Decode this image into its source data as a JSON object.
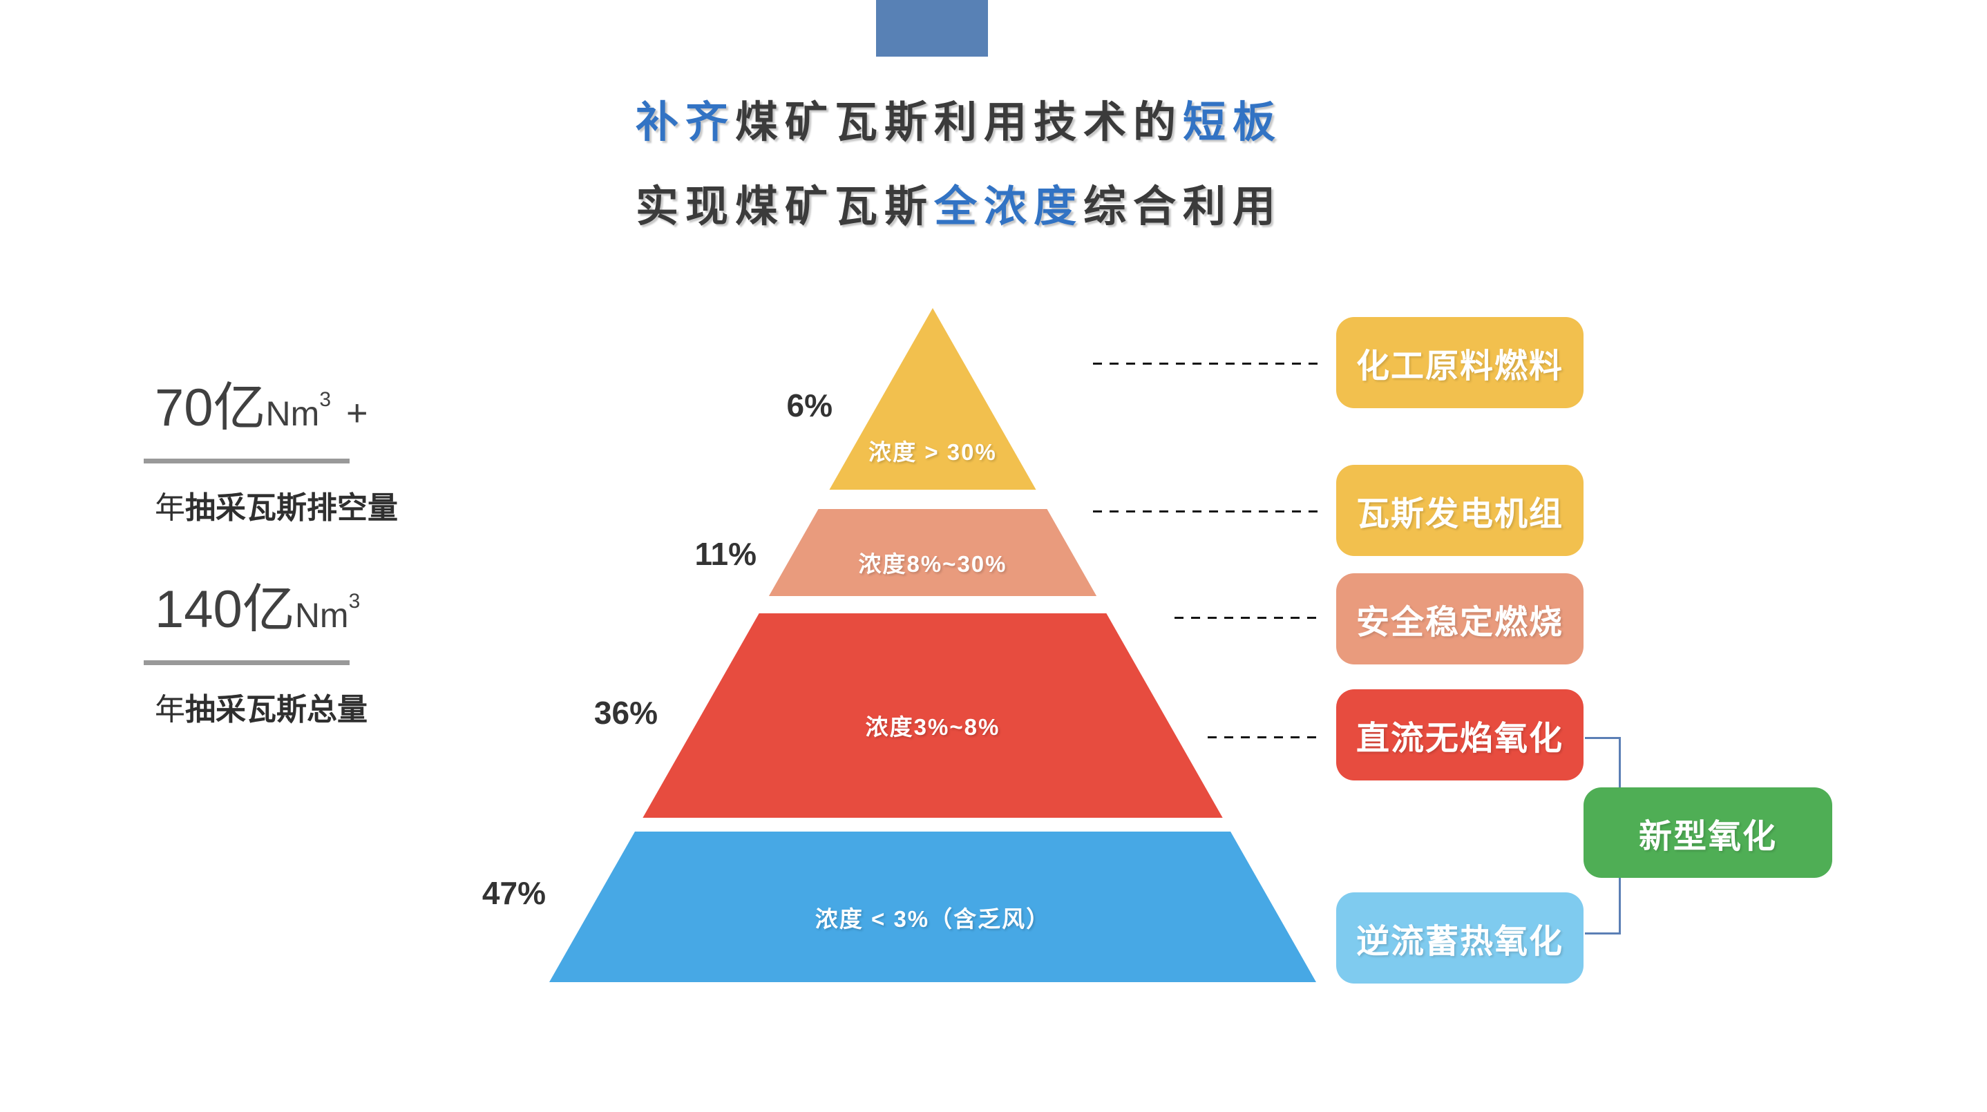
{
  "title": {
    "line1": [
      {
        "text": "补齐"
      },
      {
        "text": "煤矿瓦斯利用技术的"
      },
      {
        "text": "短板"
      }
    ],
    "line2": [
      {
        "text": "实现煤矿瓦斯"
      },
      {
        "text": "全浓度"
      },
      {
        "text": "综合利用"
      }
    ]
  },
  "stats": [
    {
      "value": "70亿",
      "unit": "Nm",
      "sup": "3",
      "suffix": "+",
      "label_prefix": "年",
      "label_bold": "抽采瓦斯排空量"
    },
    {
      "value": "140亿",
      "unit": "Nm",
      "sup": "3",
      "suffix": "",
      "label_prefix": "年",
      "label_bold": "抽采瓦斯总量"
    }
  ],
  "pyramid": {
    "layers": [
      {
        "percent": "6%",
        "caption": "浓度 > 30%",
        "color": "#F2C04E"
      },
      {
        "percent": "11%",
        "caption": "浓度8%~30%",
        "color": "#E99B7D"
      },
      {
        "percent": "36%",
        "caption": "浓度3%~8%",
        "color": "#E74C3F"
      },
      {
        "percent": "47%",
        "caption": "浓度 < 3%（含乏风）",
        "color": "#47A8E5"
      }
    ]
  },
  "right_labels": [
    {
      "text": "化工原料燃料",
      "color": "#F2C04E"
    },
    {
      "text": "瓦斯发电机组",
      "color": "#F2C04E"
    },
    {
      "text": "安全稳定燃烧",
      "color": "#E99B7D"
    },
    {
      "text": "直流无焰氧化",
      "color": "#E74C3F"
    },
    {
      "text": "逆流蓄热氧化",
      "color": "#7FCBEF"
    }
  ],
  "group_label": {
    "text": "新型氧化",
    "color": "#4FAE55"
  },
  "colors": {
    "accent_bar": "#5881B5",
    "title_blue": "#3273C4",
    "text_dark": "#3B3B3B",
    "underline_gray": "#999999",
    "dash_line": "#141414",
    "bracket_connector": "#5B7FB5",
    "background": "#FFFFFF"
  },
  "chart_data": {
    "type": "pyramid",
    "title": "煤矿瓦斯全浓度综合利用",
    "categories": [
      "浓度 > 30%",
      "浓度8%~30%",
      "浓度3%~8%",
      "浓度 < 3%（含乏风）"
    ],
    "values": [
      6,
      11,
      36,
      47
    ],
    "unit": "%",
    "annotations": [
      {
        "layer": "浓度 > 30%",
        "use": "化工原料燃料"
      },
      {
        "layer": "浓度8%~30%",
        "use": "瓦斯发电机组"
      },
      {
        "layer": "浓度3%~8%",
        "use": "安全稳定燃烧 / 直流无焰氧化"
      },
      {
        "layer": "浓度 < 3%（含乏风）",
        "use": "逆流蓄热氧化"
      },
      {
        "group": "直流无焰氧化 + 逆流蓄热氧化",
        "label": "新型氧化"
      }
    ],
    "context_stats": [
      {
        "value": "70亿Nm³ +",
        "label": "年抽采瓦斯排空量"
      },
      {
        "value": "140亿Nm³",
        "label": "年抽采瓦斯总量"
      }
    ]
  }
}
